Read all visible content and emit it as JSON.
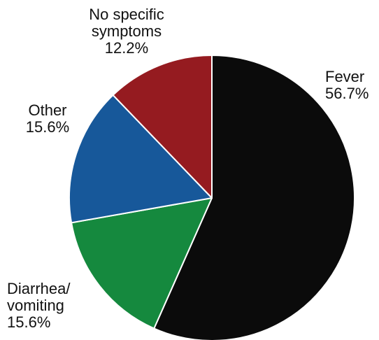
{
  "chart_data": {
    "type": "pie",
    "title": "",
    "slices": [
      {
        "label_lines": [
          "Fever"
        ],
        "percent_label": "56.7%",
        "value": 56.7,
        "color": "#0b0b0b",
        "label_anchor": "start"
      },
      {
        "label_lines": [
          "Diarrhea/",
          "vomiting"
        ],
        "percent_label": "15.6%",
        "value": 15.6,
        "color": "#15893e",
        "label_anchor": "start"
      },
      {
        "label_lines": [
          "Other"
        ],
        "percent_label": "15.6%",
        "value": 15.6,
        "color": "#17589a",
        "label_anchor": "middle"
      },
      {
        "label_lines": [
          "No specific",
          "symptoms"
        ],
        "percent_label": "12.2%",
        "value": 12.2,
        "color": "#951b20",
        "label_anchor": "middle"
      }
    ],
    "start_angle_deg": 0,
    "direction": "clockwise"
  }
}
